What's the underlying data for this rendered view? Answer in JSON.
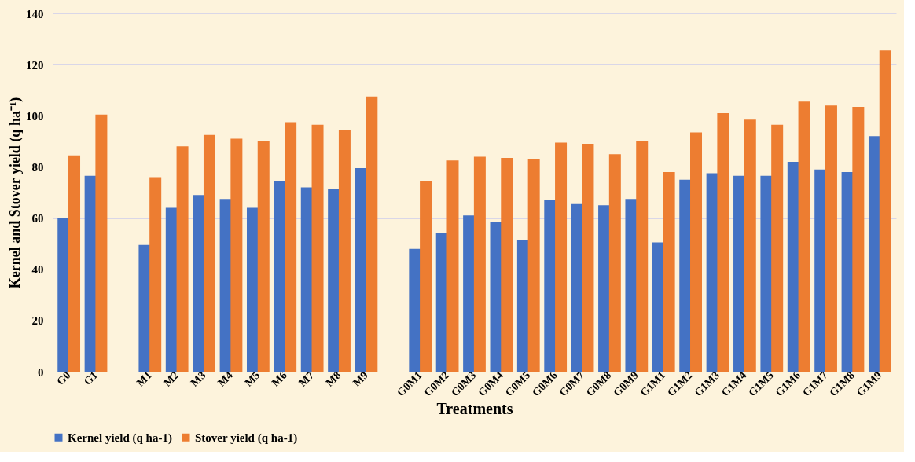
{
  "chart_data": {
    "type": "bar",
    "xlabel": "Treatments",
    "ylabel": "Kernel and Stover yield (q ha⁻¹)",
    "categories": [
      "G0",
      "G1",
      null,
      "M1",
      "M2",
      "M3",
      "M4",
      "M5",
      "M6",
      "M7",
      "M8",
      "M9",
      null,
      "G0M1",
      "G0M2",
      "G0M3",
      "G0M4",
      "G0M5",
      "G0M6",
      "G0M7",
      "G0M8",
      "G0M9",
      "G1M1",
      "G1M2",
      "G1M3",
      "G1M4",
      "G1M5",
      "G1M6",
      "G1M7",
      "G1M8",
      "G1M9"
    ],
    "series": [
      {
        "name": "Kernel yield (q ha-1)",
        "color": "#4472c4",
        "values": [
          60,
          76.5,
          null,
          49.5,
          64,
          69,
          67.5,
          64,
          74.5,
          72,
          71.5,
          79.5,
          null,
          48,
          54,
          61,
          58.5,
          51.5,
          67,
          65.5,
          65,
          67.5,
          50.5,
          75,
          77.5,
          76.5,
          76.5,
          82,
          79,
          78,
          92
        ]
      },
      {
        "name": "Stover yield (q ha-1)",
        "color": "#ed7d31",
        "values": [
          84.5,
          100.5,
          null,
          76,
          88,
          92.5,
          91,
          90,
          97.5,
          96.5,
          94.5,
          107.5,
          null,
          74.5,
          82.5,
          84,
          83.5,
          83,
          89.5,
          89,
          85,
          90,
          78,
          93.5,
          101,
          98.5,
          96.5,
          105.5,
          104,
          103.5,
          125.5
        ]
      }
    ],
    "ylim": [
      0,
      140
    ],
    "yticks": [
      0,
      20,
      40,
      60,
      80,
      100,
      120,
      140
    ],
    "grid": "y",
    "legend": "bottom"
  }
}
